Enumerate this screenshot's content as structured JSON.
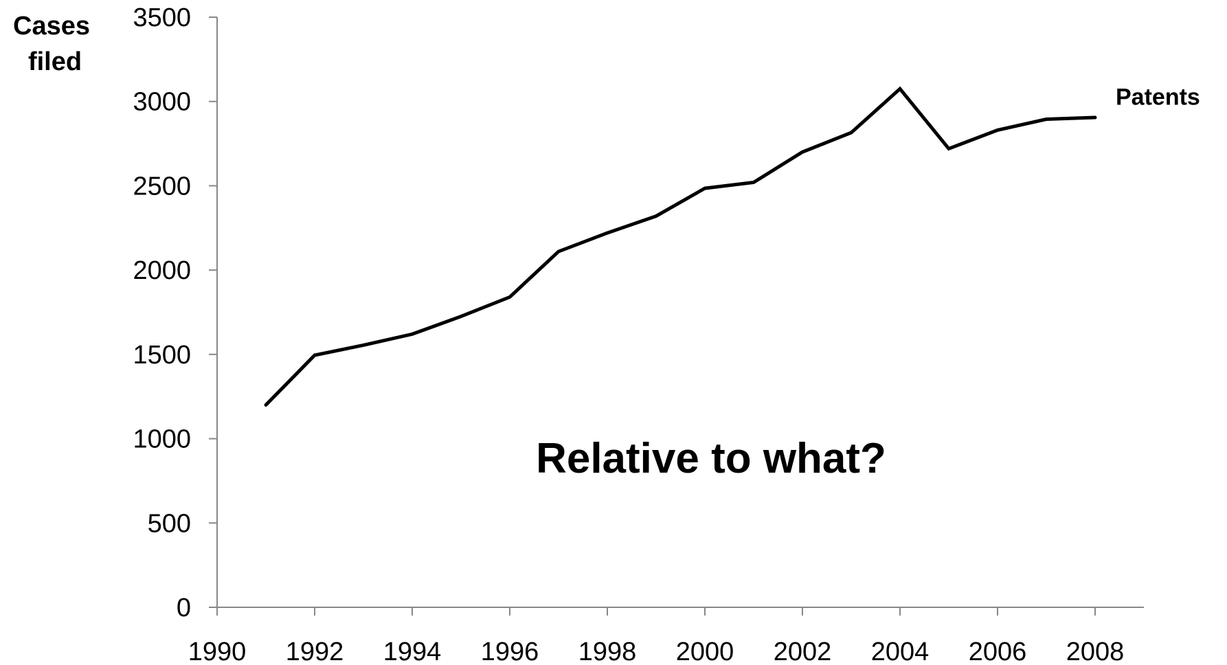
{
  "chart_data": {
    "type": "line",
    "ylabel": "Cases filed",
    "xlabel": "",
    "title": "",
    "x": [
      1991,
      1992,
      1993,
      1994,
      1995,
      1996,
      1997,
      1998,
      1999,
      2000,
      2001,
      2002,
      2003,
      2004,
      2005,
      2006,
      2007,
      2008
    ],
    "series": [
      {
        "name": "Patents",
        "values": [
          1200,
          1495,
          1555,
          1620,
          1725,
          1840,
          2110,
          2220,
          2320,
          2485,
          2520,
          2700,
          2815,
          3075,
          2720,
          2830,
          2895,
          2905
        ]
      }
    ],
    "xlim": [
      1990,
      2009
    ],
    "ylim": [
      0,
      3500
    ],
    "xticks": [
      "1990",
      "1992",
      "1994",
      "1996",
      "1998",
      "2000",
      "2002",
      "2004",
      "2006",
      "2008"
    ],
    "yticks": [
      "0",
      "500",
      "1000",
      "1500",
      "2000",
      "2500",
      "3000",
      "3500"
    ],
    "annotation": "Relative to what?",
    "grid": false,
    "colors": {
      "line": "#000000",
      "axis": "#888888"
    }
  }
}
